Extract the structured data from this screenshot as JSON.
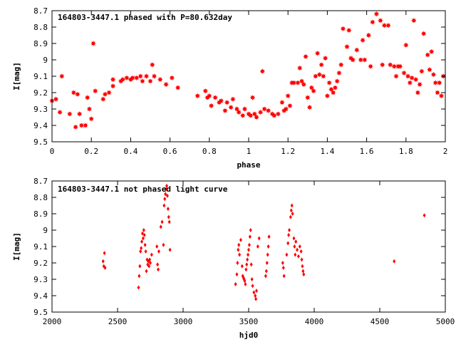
{
  "chart_data": [
    {
      "type": "scatter",
      "title": "164803-3447.1 phased with P=80.632day",
      "xlabel": "phase",
      "ylabel": "I[mag]",
      "xlim": [
        0,
        2
      ],
      "ylim": [
        8.7,
        9.5
      ],
      "y_inverted": true,
      "xticks": [
        "0",
        "0.2",
        "0.4",
        "0.6",
        "0.8",
        "1",
        "1.2",
        "1.4",
        "1.6",
        "1.8",
        "2"
      ],
      "yticks": [
        "8.7",
        "8.8",
        "8.9",
        "9",
        "9.1",
        "9.2",
        "9.3",
        "9.4",
        "9.5"
      ],
      "marker_color": "#ff0000",
      "marker": "star",
      "grid": false,
      "series": [
        {
          "points": [
            [
              0.0,
              9.25
            ],
            [
              0.02,
              9.24
            ],
            [
              0.04,
              9.32
            ],
            [
              0.05,
              9.1
            ],
            [
              0.09,
              9.33
            ],
            [
              0.11,
              9.2
            ],
            [
              0.12,
              9.41
            ],
            [
              0.13,
              9.21
            ],
            [
              0.14,
              9.33
            ],
            [
              0.15,
              9.4
            ],
            [
              0.17,
              9.4
            ],
            [
              0.18,
              9.23
            ],
            [
              0.19,
              9.3
            ],
            [
              0.2,
              9.36
            ],
            [
              0.21,
              8.9
            ],
            [
              0.22,
              9.19
            ],
            [
              0.26,
              9.24
            ],
            [
              0.27,
              9.21
            ],
            [
              0.29,
              9.2
            ],
            [
              0.31,
              9.16
            ],
            [
              0.31,
              9.12
            ],
            [
              0.35,
              9.13
            ],
            [
              0.36,
              9.12
            ],
            [
              0.38,
              9.11
            ],
            [
              0.4,
              9.12
            ],
            [
              0.41,
              9.11
            ],
            [
              0.43,
              9.11
            ],
            [
              0.45,
              9.1
            ],
            [
              0.46,
              9.13
            ],
            [
              0.48,
              9.1
            ],
            [
              0.5,
              9.13
            ],
            [
              0.51,
              9.03
            ],
            [
              0.52,
              9.1
            ],
            [
              0.55,
              9.12
            ],
            [
              0.58,
              9.15
            ],
            [
              0.61,
              9.11
            ],
            [
              0.64,
              9.17
            ],
            [
              0.74,
              9.22
            ],
            [
              0.78,
              9.19
            ],
            [
              0.79,
              9.23
            ],
            [
              0.8,
              9.22
            ],
            [
              0.81,
              9.28
            ],
            [
              0.83,
              9.23
            ],
            [
              0.85,
              9.26
            ],
            [
              0.86,
              9.25
            ],
            [
              0.88,
              9.31
            ],
            [
              0.89,
              9.26
            ],
            [
              0.91,
              9.29
            ],
            [
              0.92,
              9.24
            ],
            [
              0.94,
              9.3
            ],
            [
              0.95,
              9.32
            ],
            [
              0.97,
              9.34
            ],
            [
              0.98,
              9.3
            ],
            [
              1.0,
              9.33
            ],
            [
              1.01,
              9.34
            ],
            [
              1.02,
              9.23
            ],
            [
              1.03,
              9.33
            ],
            [
              1.04,
              9.35
            ],
            [
              1.06,
              9.32
            ],
            [
              1.07,
              9.07
            ],
            [
              1.08,
              9.3
            ],
            [
              1.1,
              9.31
            ],
            [
              1.12,
              9.33
            ],
            [
              1.13,
              9.34
            ],
            [
              1.15,
              9.33
            ],
            [
              1.17,
              9.26
            ],
            [
              1.18,
              9.31
            ],
            [
              1.19,
              9.3
            ],
            [
              1.2,
              9.22
            ],
            [
              1.21,
              9.28
            ],
            [
              1.22,
              9.14
            ],
            [
              1.23,
              9.14
            ],
            [
              1.25,
              9.14
            ],
            [
              1.26,
              9.05
            ],
            [
              1.27,
              9.13
            ],
            [
              1.28,
              9.15
            ],
            [
              1.29,
              8.98
            ],
            [
              1.3,
              9.23
            ],
            [
              1.31,
              9.29
            ],
            [
              1.32,
              9.17
            ],
            [
              1.33,
              9.19
            ],
            [
              1.34,
              9.1
            ],
            [
              1.35,
              8.96
            ],
            [
              1.36,
              9.09
            ],
            [
              1.37,
              9.03
            ],
            [
              1.38,
              9.1
            ],
            [
              1.39,
              8.99
            ],
            [
              1.4,
              9.22
            ],
            [
              1.41,
              9.14
            ],
            [
              1.42,
              9.18
            ],
            [
              1.43,
              9.2
            ],
            [
              1.44,
              9.17
            ],
            [
              1.45,
              9.13
            ],
            [
              1.46,
              9.08
            ],
            [
              1.47,
              9.03
            ],
            [
              1.48,
              8.81
            ],
            [
              1.5,
              8.92
            ],
            [
              1.51,
              8.82
            ],
            [
              1.52,
              8.99
            ],
            [
              1.53,
              9.0
            ],
            [
              1.55,
              8.94
            ],
            [
              1.57,
              9.0
            ],
            [
              1.58,
              8.88
            ],
            [
              1.59,
              9.0
            ],
            [
              1.61,
              8.85
            ],
            [
              1.62,
              9.04
            ],
            [
              1.63,
              8.77
            ],
            [
              1.65,
              8.72
            ],
            [
              1.67,
              8.76
            ],
            [
              1.68,
              9.03
            ],
            [
              1.69,
              8.79
            ],
            [
              1.71,
              8.79
            ],
            [
              1.72,
              9.03
            ],
            [
              1.74,
              9.04
            ],
            [
              1.75,
              9.1
            ],
            [
              1.76,
              9.04
            ],
            [
              1.77,
              9.04
            ],
            [
              1.79,
              9.08
            ],
            [
              1.8,
              8.91
            ],
            [
              1.81,
              9.1
            ],
            [
              1.82,
              9.14
            ],
            [
              1.83,
              9.11
            ],
            [
              1.84,
              8.76
            ],
            [
              1.85,
              9.12
            ],
            [
              1.86,
              9.2
            ],
            [
              1.87,
              9.15
            ],
            [
              1.88,
              9.07
            ],
            [
              1.89,
              8.84
            ],
            [
              1.91,
              8.97
            ],
            [
              1.92,
              9.06
            ],
            [
              1.93,
              8.95
            ],
            [
              1.94,
              9.09
            ],
            [
              1.95,
              9.14
            ],
            [
              1.96,
              9.2
            ],
            [
              1.97,
              9.14
            ],
            [
              1.98,
              9.22
            ],
            [
              1.99,
              9.1
            ]
          ]
        }
      ]
    },
    {
      "type": "scatter",
      "title": "164803-3447.1 not phased light curve",
      "xlabel": "hjd0",
      "ylabel": "I[mag]",
      "xlim": [
        2000,
        5000
      ],
      "ylim": [
        8.7,
        9.5
      ],
      "y_inverted": true,
      "xticks": [
        "2000",
        "2500",
        "3000",
        "3500",
        "4000",
        "4500",
        "5000"
      ],
      "yticks": [
        "8.7",
        "8.8",
        "8.9",
        "9",
        "9.1",
        "9.2",
        "9.3",
        "9.4",
        "9.5"
      ],
      "marker_color": "#ff0000",
      "marker": "diamond",
      "grid": false,
      "series": [
        {
          "points": [
            [
              2390,
              9.19
            ],
            [
              2395,
              9.22
            ],
            [
              2400,
              9.14
            ],
            [
              2405,
              9.23
            ],
            [
              2660,
              9.35
            ],
            [
              2665,
              9.28
            ],
            [
              2670,
              9.22
            ],
            [
              2675,
              9.13
            ],
            [
              2680,
              9.11
            ],
            [
              2685,
              9.07
            ],
            [
              2690,
              9.02
            ],
            [
              2695,
              9.05
            ],
            [
              2700,
              9.0
            ],
            [
              2705,
              9.03
            ],
            [
              2710,
              9.09
            ],
            [
              2715,
              9.13
            ],
            [
              2720,
              9.25
            ],
            [
              2725,
              9.18
            ],
            [
              2730,
              9.21
            ],
            [
              2735,
              9.19
            ],
            [
              2740,
              9.22
            ],
            [
              2745,
              9.18
            ],
            [
              2750,
              9.2
            ],
            [
              2760,
              9.15
            ],
            [
              2800,
              9.1
            ],
            [
              2805,
              9.21
            ],
            [
              2810,
              9.24
            ],
            [
              2815,
              9.13
            ],
            [
              2830,
              8.98
            ],
            [
              2840,
              8.95
            ],
            [
              2850,
              9.09
            ],
            [
              2855,
              8.85
            ],
            [
              2860,
              8.81
            ],
            [
              2865,
              8.78
            ],
            [
              2870,
              8.75
            ],
            [
              2875,
              8.73
            ],
            [
              2880,
              8.79
            ],
            [
              2885,
              8.87
            ],
            [
              2890,
              8.92
            ],
            [
              2895,
              8.95
            ],
            [
              2900,
              9.12
            ],
            [
              3400,
              9.33
            ],
            [
              3410,
              9.27
            ],
            [
              3415,
              9.2
            ],
            [
              3420,
              9.12
            ],
            [
              3425,
              9.09
            ],
            [
              3430,
              9.15
            ],
            [
              3440,
              9.06
            ],
            [
              3450,
              9.22
            ],
            [
              3455,
              9.28
            ],
            [
              3460,
              9.29
            ],
            [
              3465,
              9.3
            ],
            [
              3470,
              9.31
            ],
            [
              3475,
              9.33
            ],
            [
              3480,
              9.24
            ],
            [
              3485,
              9.21
            ],
            [
              3490,
              9.18
            ],
            [
              3495,
              9.15
            ],
            [
              3500,
              9.12
            ],
            [
              3505,
              9.09
            ],
            [
              3510,
              9.04
            ],
            [
              3515,
              9.0
            ],
            [
              3520,
              9.21
            ],
            [
              3525,
              9.3
            ],
            [
              3530,
              9.34
            ],
            [
              3540,
              9.38
            ],
            [
              3550,
              9.4
            ],
            [
              3555,
              9.42
            ],
            [
              3560,
              9.37
            ],
            [
              3570,
              9.1
            ],
            [
              3580,
              9.05
            ],
            [
              3630,
              9.28
            ],
            [
              3635,
              9.25
            ],
            [
              3640,
              9.2
            ],
            [
              3645,
              9.15
            ],
            [
              3650,
              9.1
            ],
            [
              3655,
              9.04
            ],
            [
              3760,
              9.2
            ],
            [
              3765,
              9.23
            ],
            [
              3770,
              9.28
            ],
            [
              3790,
              9.15
            ],
            [
              3800,
              9.08
            ],
            [
              3805,
              9.03
            ],
            [
              3810,
              9.0
            ],
            [
              3820,
              8.92
            ],
            [
              3825,
              8.88
            ],
            [
              3830,
              8.85
            ],
            [
              3835,
              8.9
            ],
            [
              3845,
              9.05
            ],
            [
              3850,
              9.1
            ],
            [
              3855,
              9.15
            ],
            [
              3860,
              9.07
            ],
            [
              3870,
              9.12
            ],
            [
              3880,
              9.16
            ],
            [
              3890,
              9.1
            ],
            [
              3900,
              9.13
            ],
            [
              3905,
              9.18
            ],
            [
              3910,
              9.22
            ],
            [
              3915,
              9.25
            ],
            [
              3920,
              9.27
            ],
            [
              4610,
              9.19
            ],
            [
              4840,
              8.91
            ]
          ]
        }
      ]
    }
  ]
}
